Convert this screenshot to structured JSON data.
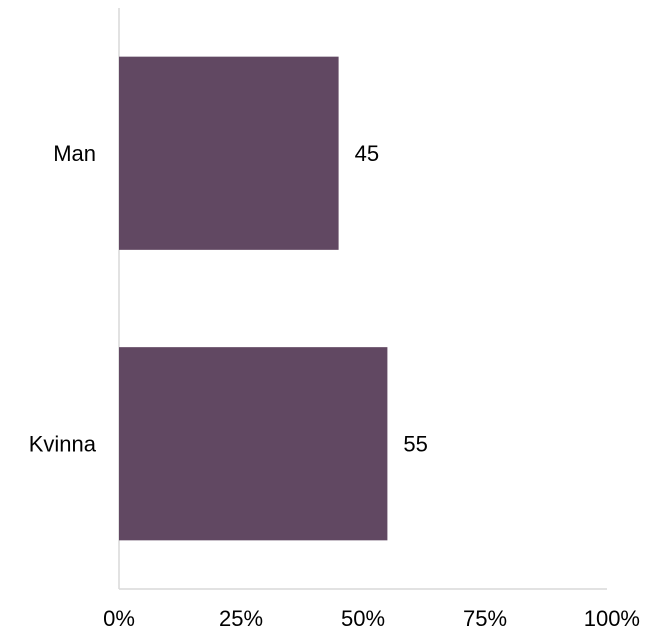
{
  "chart_data": {
    "type": "bar",
    "orientation": "horizontal",
    "categories": [
      "Man",
      "Kvinna"
    ],
    "values": [
      45,
      55
    ],
    "data_labels": [
      "45",
      "55"
    ],
    "xlim": [
      0,
      100
    ],
    "x_ticks": [
      0,
      25,
      50,
      75,
      100
    ],
    "x_tick_labels": [
      "0%",
      "25%",
      "50%",
      "75%",
      "100%"
    ],
    "grid": false,
    "bar_color": "#614862"
  }
}
